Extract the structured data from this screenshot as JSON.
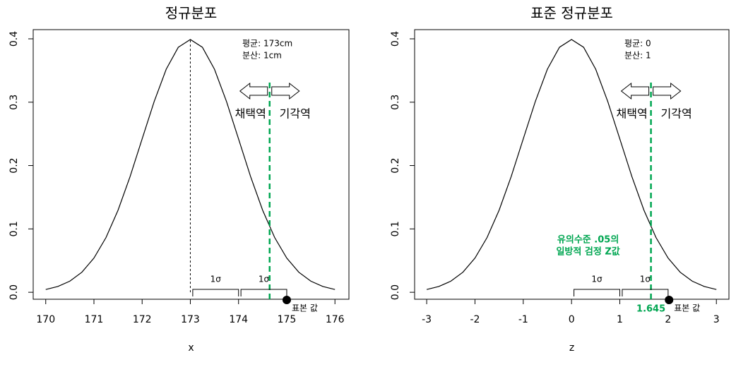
{
  "chart_data": [
    {
      "type": "line",
      "title": "정규분포",
      "xlabel": "x",
      "x": [
        170,
        170.25,
        170.5,
        170.75,
        171,
        171.25,
        171.5,
        171.75,
        172,
        172.25,
        172.5,
        172.75,
        173,
        173.25,
        173.5,
        173.75,
        174,
        174.25,
        174.5,
        174.75,
        175,
        175.25,
        175.5,
        175.75,
        176
      ],
      "values": [
        0.0044,
        0.0091,
        0.0175,
        0.0317,
        0.054,
        0.0863,
        0.1295,
        0.1826,
        0.242,
        0.3011,
        0.3521,
        0.3867,
        0.3989,
        0.3867,
        0.3521,
        0.3011,
        0.242,
        0.1826,
        0.1295,
        0.0863,
        0.054,
        0.0317,
        0.0175,
        0.0091,
        0.0044
      ],
      "color": "#000000",
      "xlim": [
        169.74,
        176.29
      ],
      "ylim": [
        -0.011,
        0.4145
      ],
      "xticks": [
        170,
        171,
        172,
        173,
        174,
        175,
        176
      ],
      "yticks": [
        {
          "value": 0,
          "label": "0.0"
        },
        0.1,
        0.2,
        0.3,
        0.4
      ],
      "mean_text": "평균: 173cm",
      "variance_text": "분산: 1cm",
      "accept_label": "채택역",
      "reject_label": "기각역",
      "mean_line": 173,
      "critical_value": 174.645,
      "critical_color": "#00a651",
      "brackets": [
        {
          "label": "1σ",
          "range": [
            173.05,
            174
          ]
        },
        {
          "label": "1σ",
          "range": [
            174.05,
            175
          ]
        }
      ],
      "sample_value": 175,
      "sample_label": "표본 값"
    },
    {
      "type": "line",
      "title": "표준 정규분포",
      "xlabel": "z",
      "x": [
        -3,
        -2.75,
        -2.5,
        -2.25,
        -2,
        -1.75,
        -1.5,
        -1.25,
        -1,
        -0.75,
        -0.5,
        -0.25,
        0,
        0.25,
        0.5,
        0.75,
        1,
        1.25,
        1.5,
        1.75,
        2,
        2.25,
        2.5,
        2.75,
        3
      ],
      "values": [
        0.0044,
        0.0091,
        0.0175,
        0.0317,
        0.054,
        0.0863,
        0.1295,
        0.1826,
        0.242,
        0.3011,
        0.3521,
        0.3867,
        0.3989,
        0.3867,
        0.3521,
        0.3011,
        0.242,
        0.1826,
        0.1295,
        0.0863,
        0.054,
        0.0317,
        0.0175,
        0.0091,
        0.0044
      ],
      "color": "#000000",
      "xlim": [
        -3.25,
        3.26
      ],
      "ylim": [
        -0.011,
        0.4145
      ],
      "xticks": [
        -3,
        -2,
        -1,
        0,
        1,
        2,
        3
      ],
      "yticks": [
        {
          "value": 0,
          "label": "0.0"
        },
        0.1,
        0.2,
        0.3,
        0.4
      ],
      "mean_text": "평균: 0",
      "variance_text": "분산: 1",
      "accept_label": "채택역",
      "reject_label": "기각역",
      "critical_value": 1.645,
      "critical_color": "#00a651",
      "note": [
        "유의수준 .05의",
        "일방적 검정 Z값"
      ],
      "brackets": [
        {
          "label": "1σ",
          "range": [
            0.05,
            1
          ]
        },
        {
          "label": "1σ",
          "range": [
            1.05,
            2
          ]
        }
      ],
      "sample_value": 2.02,
      "sample_label": "표본 값"
    }
  ]
}
